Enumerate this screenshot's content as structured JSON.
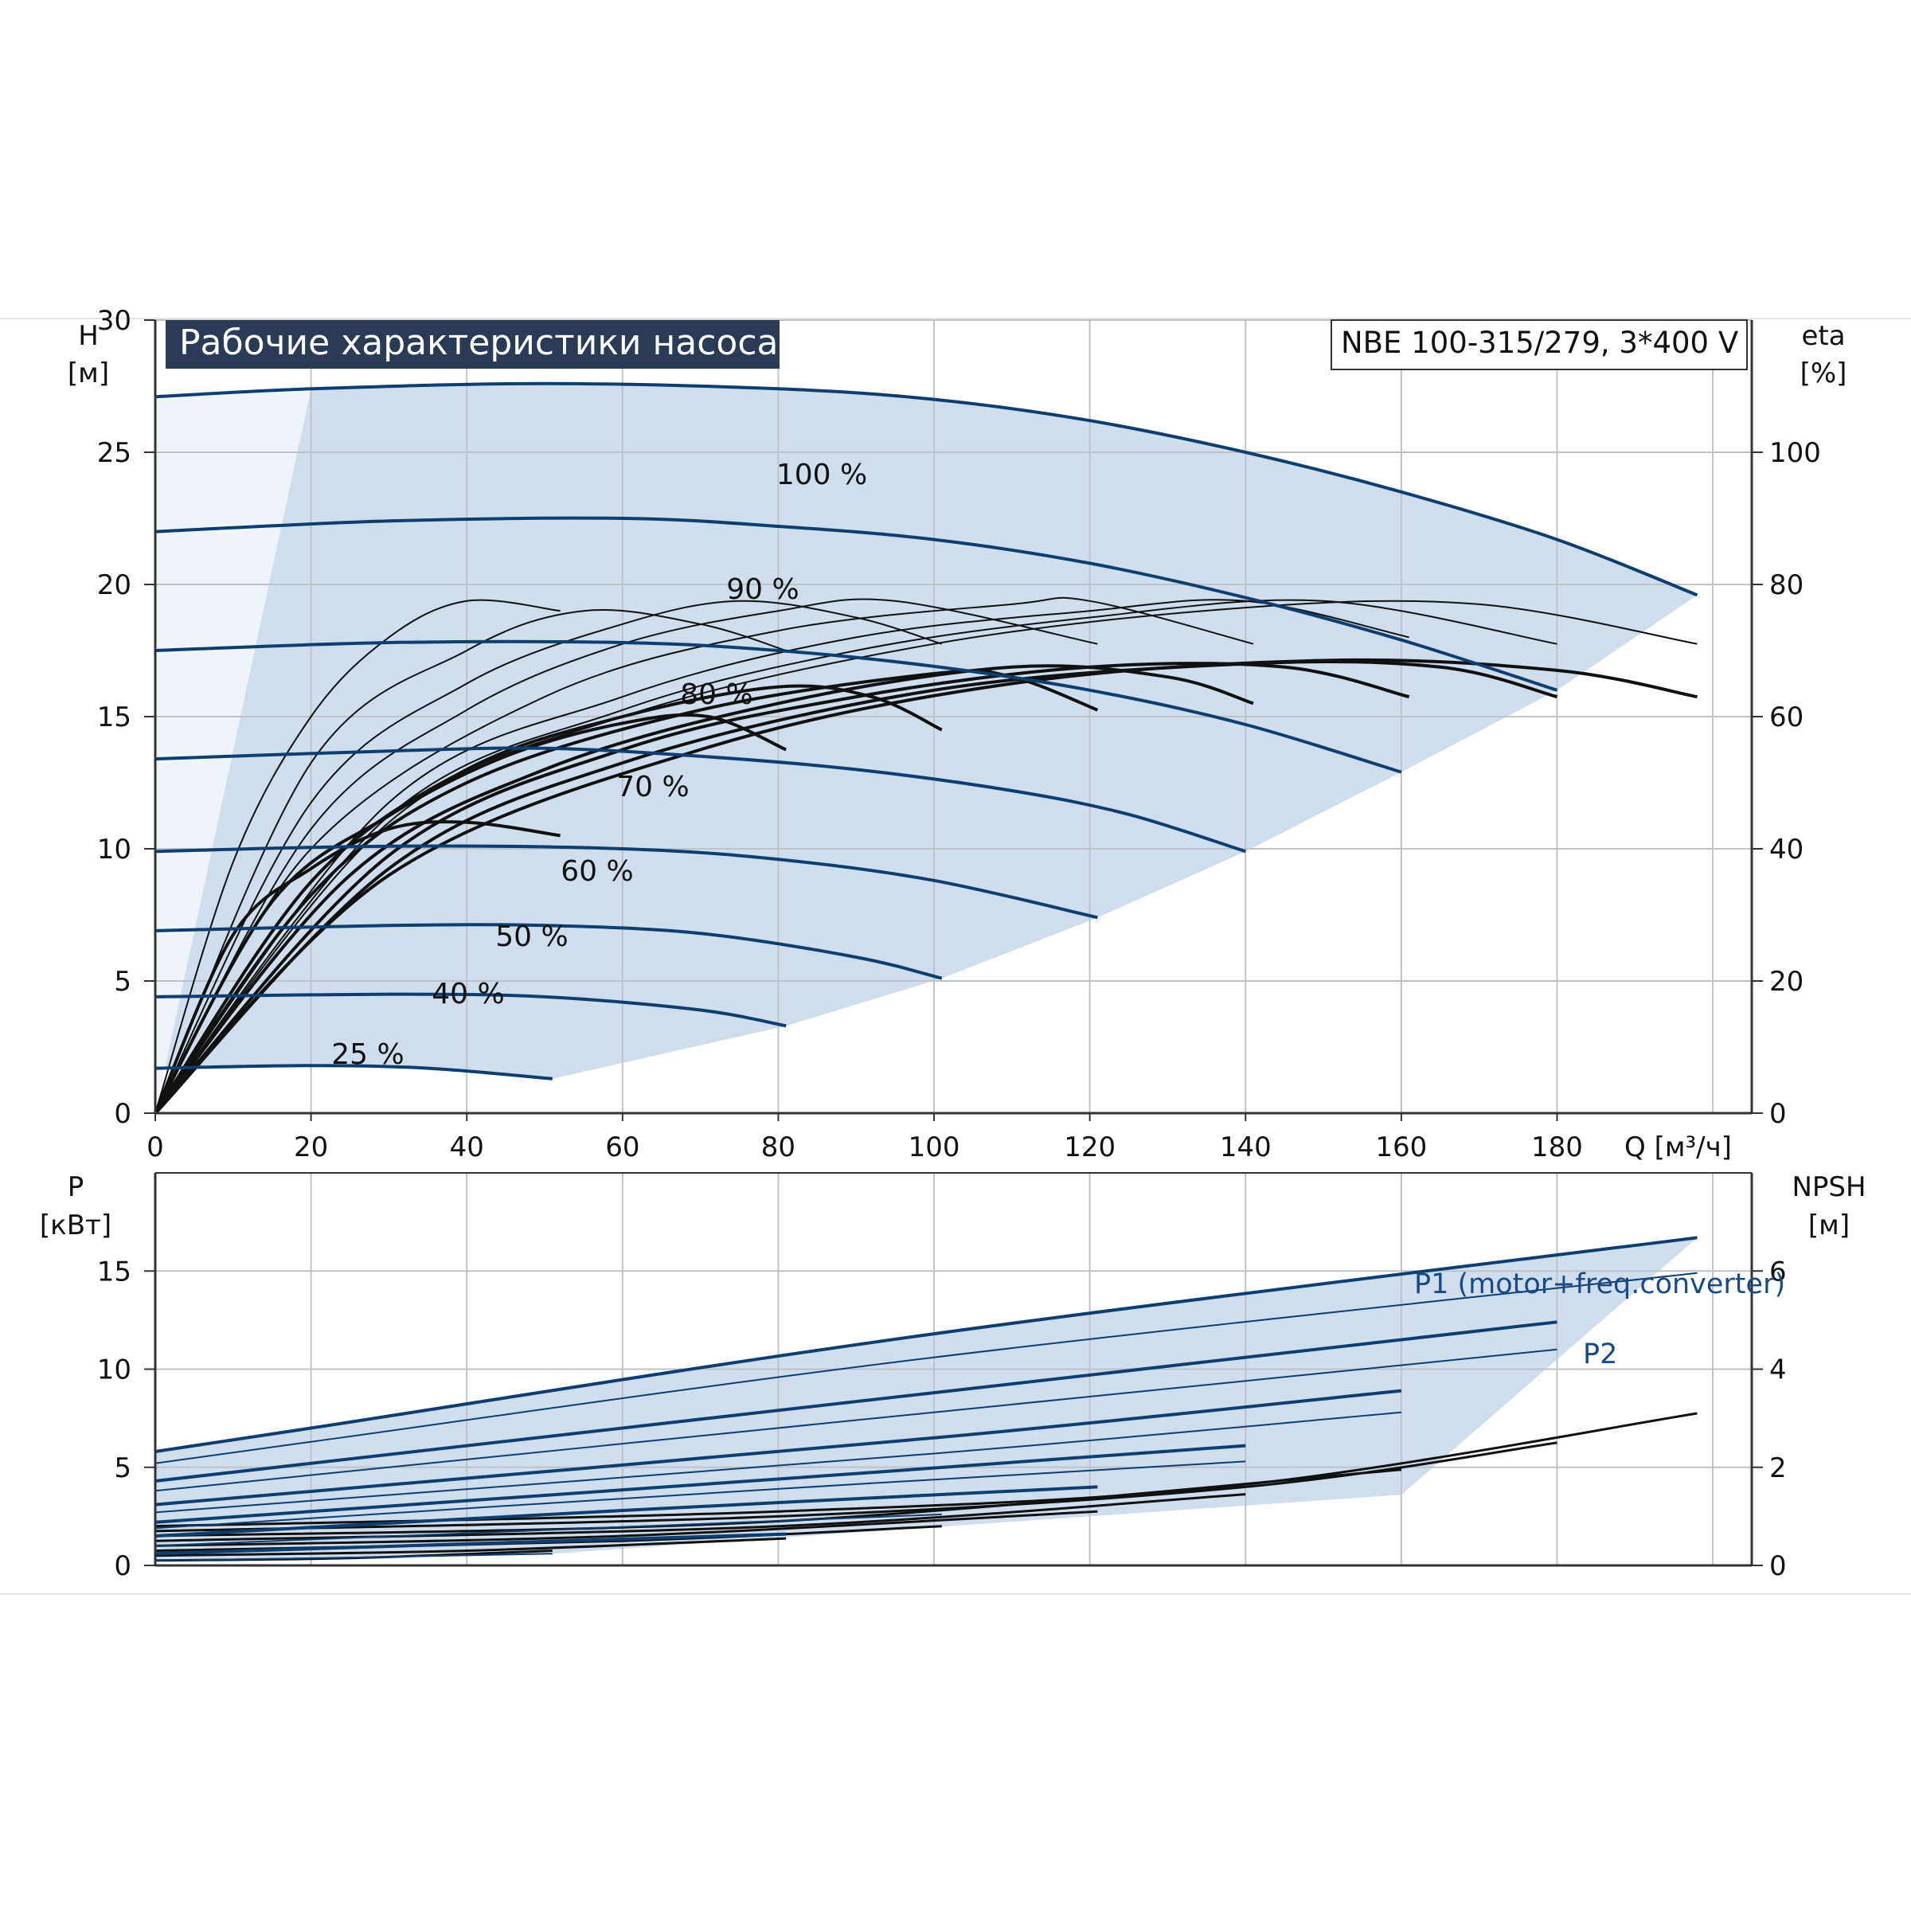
{
  "chart_data": [
    {
      "type": "line",
      "title": "Рабочие характеристики насоса",
      "model": "NBE 100-315/279, 3*400 V",
      "xlabel": "Q [м³/ч]",
      "ylabel": [
        "H",
        "[м]"
      ],
      "y2label": [
        "eta",
        "[%]"
      ],
      "xlim": [
        0,
        205
      ],
      "ylim": [
        0,
        30
      ],
      "y2lim": [
        0,
        120
      ],
      "x_ticks": [
        "0",
        "20",
        "40",
        "60",
        "80",
        "100",
        "120",
        "140",
        "160",
        "180"
      ],
      "y_ticks": [
        "0",
        "5",
        "10",
        "15",
        "20",
        "25",
        "30"
      ],
      "y2_ticks": [
        "0",
        "20",
        "40",
        "60",
        "80",
        "100"
      ],
      "grid": true,
      "colors": {
        "head": "#0f3d6e",
        "eta": "#111111",
        "area": "#cfddec",
        "area_light": "#eef4fa",
        "title_bg": "#2b3a55"
      },
      "head_curves": [
        {
          "name": "100 %",
          "points": [
            [
              0,
              27.1
            ],
            [
              20,
              27.4
            ],
            [
              50,
              27.6
            ],
            [
              80,
              27.4
            ],
            [
              100,
              27.0
            ],
            [
              120,
              26.2
            ],
            [
              140,
              25.0
            ],
            [
              160,
              23.5
            ],
            [
              180,
              21.7
            ],
            [
              198,
              19.6
            ]
          ]
        },
        {
          "name": "90 %",
          "points": [
            [
              0,
              22.0
            ],
            [
              30,
              22.4
            ],
            [
              60,
              22.5
            ],
            [
              80,
              22.2
            ],
            [
              100,
              21.7
            ],
            [
              120,
              20.8
            ],
            [
              140,
              19.5
            ],
            [
              160,
              17.9
            ],
            [
              180,
              16.0
            ]
          ]
        },
        {
          "name": "80 %",
          "points": [
            [
              0,
              17.5
            ],
            [
              30,
              17.8
            ],
            [
              60,
              17.8
            ],
            [
              80,
              17.5
            ],
            [
              100,
              16.9
            ],
            [
              120,
              16.0
            ],
            [
              140,
              14.7
            ],
            [
              160,
              12.9
            ]
          ]
        },
        {
          "name": "70 %",
          "points": [
            [
              0,
              13.4
            ],
            [
              30,
              13.7
            ],
            [
              50,
              13.8
            ],
            [
              70,
              13.5
            ],
            [
              90,
              13.0
            ],
            [
              110,
              12.2
            ],
            [
              125,
              11.3
            ],
            [
              140,
              9.9
            ]
          ]
        },
        {
          "name": "60 %",
          "points": [
            [
              0,
              9.9
            ],
            [
              30,
              10.1
            ],
            [
              60,
              10.0
            ],
            [
              80,
              9.6
            ],
            [
              100,
              8.8
            ],
            [
              121,
              7.4
            ]
          ]
        },
        {
          "name": "50 %",
          "points": [
            [
              0,
              6.9
            ],
            [
              30,
              7.1
            ],
            [
              50,
              7.1
            ],
            [
              70,
              6.8
            ],
            [
              90,
              5.9
            ],
            [
              101,
              5.1
            ]
          ]
        },
        {
          "name": "40 %",
          "points": [
            [
              0,
              4.4
            ],
            [
              30,
              4.5
            ],
            [
              50,
              4.4
            ],
            [
              70,
              3.9
            ],
            [
              81,
              3.3
            ]
          ]
        },
        {
          "name": "25 %",
          "points": [
            [
              0,
              1.7
            ],
            [
              20,
              1.8
            ],
            [
              35,
              1.7
            ],
            [
              51,
              1.3
            ]
          ]
        }
      ],
      "eta_curves": [
        {
          "points": [
            [
              0,
              0
            ],
            [
              10,
              38
            ],
            [
              20,
              60
            ],
            [
              30,
              72
            ],
            [
              40,
              77.5
            ],
            [
              52,
              76
            ]
          ],
          "weight": "thin"
        },
        {
          "points": [
            [
              0,
              0
            ],
            [
              20,
              53
            ],
            [
              40,
              70
            ],
            [
              55,
              76
            ],
            [
              70,
              74
            ],
            [
              81,
              70
            ]
          ],
          "weight": "thin"
        },
        {
          "points": [
            [
              0,
              0
            ],
            [
              20,
              47
            ],
            [
              40,
              65
            ],
            [
              60,
              74
            ],
            [
              75,
              77.5
            ],
            [
              90,
              75
            ],
            [
              101,
              71
            ]
          ],
          "weight": "thin"
        },
        {
          "points": [
            [
              0,
              0
            ],
            [
              20,
              43
            ],
            [
              40,
              61
            ],
            [
              60,
              71
            ],
            [
              80,
              76
            ],
            [
              95,
              77.5
            ],
            [
              121,
              71
            ]
          ],
          "weight": "thin"
        },
        {
          "points": [
            [
              0,
              0
            ],
            [
              20,
              40
            ],
            [
              50,
              63
            ],
            [
              80,
              73
            ],
            [
              110,
              77
            ],
            [
              120,
              77.5
            ],
            [
              141,
              71
            ]
          ],
          "weight": "thin"
        },
        {
          "points": [
            [
              0,
              0
            ],
            [
              30,
              47
            ],
            [
              60,
              63
            ],
            [
              90,
              72
            ],
            [
              120,
              76
            ],
            [
              140,
              77.5
            ],
            [
              161,
              72
            ]
          ],
          "weight": "thin"
        },
        {
          "points": [
            [
              0,
              0
            ],
            [
              30,
              45
            ],
            [
              60,
              61
            ],
            [
              90,
              70
            ],
            [
              120,
              75
            ],
            [
              150,
              77.5
            ],
            [
              180,
              71
            ]
          ],
          "weight": "thin"
        },
        {
          "points": [
            [
              0,
              0
            ],
            [
              30,
              44
            ],
            [
              60,
              60
            ],
            [
              100,
              71
            ],
            [
              140,
              76.5
            ],
            [
              170,
              77
            ],
            [
              198,
              71
            ]
          ],
          "weight": "thin"
        },
        {
          "points": [
            [
              0,
              0
            ],
            [
              10,
              27
            ],
            [
              20,
              37
            ],
            [
              30,
              43
            ],
            [
              40,
              44
            ],
            [
              52,
              42
            ]
          ],
          "weight": "bold"
        },
        {
          "points": [
            [
              0,
              0
            ],
            [
              15,
              32
            ],
            [
              30,
              45
            ],
            [
              45,
              54
            ],
            [
              60,
              59
            ],
            [
              71,
              60
            ],
            [
              81,
              55
            ]
          ],
          "weight": "bold"
        },
        {
          "points": [
            [
              0,
              0
            ],
            [
              20,
              35
            ],
            [
              40,
              52
            ],
            [
              60,
              60
            ],
            [
              80,
              64.5
            ],
            [
              92,
              63
            ],
            [
              101,
              58
            ]
          ],
          "weight": "bold"
        },
        {
          "points": [
            [
              0,
              0
            ],
            [
              20,
              33
            ],
            [
              40,
              50
            ],
            [
              70,
              61
            ],
            [
              100,
              66.5
            ],
            [
              110,
              66
            ],
            [
              121,
              61
            ]
          ],
          "weight": "bold"
        },
        {
          "points": [
            [
              0,
              0
            ],
            [
              25,
              36
            ],
            [
              50,
              52
            ],
            [
              80,
              62
            ],
            [
              110,
              67.5
            ],
            [
              130,
              66
            ],
            [
              141,
              62
            ]
          ],
          "weight": "bold"
        },
        {
          "points": [
            [
              0,
              0
            ],
            [
              30,
              39
            ],
            [
              60,
              55
            ],
            [
              90,
              63
            ],
            [
              120,
              67.5
            ],
            [
              145,
              67.5
            ],
            [
              161,
              63
            ]
          ],
          "weight": "bold"
        },
        {
          "points": [
            [
              0,
              0
            ],
            [
              30,
              37
            ],
            [
              60,
              53
            ],
            [
              100,
              64
            ],
            [
              140,
              68
            ],
            [
              165,
              67.5
            ],
            [
              180,
              63
            ]
          ],
          "weight": "bold"
        },
        {
          "points": [
            [
              0,
              0
            ],
            [
              30,
              36
            ],
            [
              70,
              55
            ],
            [
              110,
              65
            ],
            [
              150,
              68.5
            ],
            [
              180,
              67
            ],
            [
              198,
              63
            ]
          ],
          "weight": "bold"
        }
      ]
    },
    {
      "type": "line",
      "ylabel": [
        "P",
        "[кВт]"
      ],
      "y2label": [
        "NPSH",
        "[м]"
      ],
      "xlim": [
        0,
        205
      ],
      "ylim": [
        0,
        20
      ],
      "y2lim": [
        0,
        8
      ],
      "y_ticks": [
        "0",
        "5",
        "10",
        "15"
      ],
      "y2_ticks": [
        "0",
        "2",
        "4",
        "6"
      ],
      "grid": true,
      "annotations": [
        "P1 (motor+freq.converter)",
        "P2"
      ],
      "power_curves": [
        {
          "name": "P1 100 %",
          "points": [
            [
              0,
              5.8
            ],
            [
              20,
              7.0
            ],
            [
              100,
              11.8
            ],
            [
              198,
              16.7
            ]
          ]
        },
        {
          "name": "P2 100 %",
          "points": [
            [
              0,
              5.2
            ],
            [
              20,
              6.3
            ],
            [
              100,
              10.6
            ],
            [
              198,
              14.9
            ]
          ]
        },
        {
          "name": "P1 90 %",
          "points": [
            [
              0,
              4.3
            ],
            [
              100,
              8.8
            ],
            [
              180,
              12.4
            ]
          ]
        },
        {
          "name": "P2 90 %",
          "points": [
            [
              0,
              3.8
            ],
            [
              100,
              7.8
            ],
            [
              180,
              11.0
            ]
          ]
        },
        {
          "name": "P1 80 %",
          "points": [
            [
              0,
              3.1
            ],
            [
              100,
              6.5
            ],
            [
              160,
              8.9
            ]
          ]
        },
        {
          "name": "P2 80 %",
          "points": [
            [
              0,
              2.7
            ],
            [
              100,
              5.7
            ],
            [
              160,
              7.8
            ]
          ]
        },
        {
          "name": "P1 70 %",
          "points": [
            [
              0,
              2.2
            ],
            [
              80,
              4.4
            ],
            [
              140,
              6.1
            ]
          ]
        },
        {
          "name": "P2 70 %",
          "points": [
            [
              0,
              1.9
            ],
            [
              80,
              3.9
            ],
            [
              140,
              5.3
            ]
          ]
        },
        {
          "name": "P1 60 %",
          "points": [
            [
              0,
              1.5
            ],
            [
              60,
              2.8
            ],
            [
              121,
              4.0
            ]
          ]
        },
        {
          "name": "P1 50 %",
          "points": [
            [
              0,
              1.0
            ],
            [
              50,
              1.8
            ],
            [
              101,
              2.6
            ]
          ]
        },
        {
          "name": "P1 40 %",
          "points": [
            [
              0,
              0.6
            ],
            [
              40,
              1.1
            ],
            [
              81,
              1.6
            ]
          ]
        },
        {
          "name": "P1 25 %",
          "points": [
            [
              0,
              0.25
            ],
            [
              25,
              0.4
            ],
            [
              51,
              0.6
            ]
          ]
        }
      ],
      "npsh_curves": [
        {
          "points": [
            [
              0,
              0.8
            ],
            [
              80,
              1.1
            ],
            [
              140,
              1.65
            ],
            [
              198,
              3.1
            ]
          ]
        },
        {
          "points": [
            [
              0,
              0.7
            ],
            [
              80,
              1.0
            ],
            [
              140,
              1.6
            ],
            [
              180,
              2.5
            ]
          ]
        },
        {
          "points": [
            [
              0,
              0.6
            ],
            [
              80,
              0.9
            ],
            [
              160,
              1.95
            ]
          ]
        },
        {
          "points": [
            [
              0,
              0.5
            ],
            [
              80,
              0.8
            ],
            [
              140,
              1.45
            ]
          ]
        },
        {
          "points": [
            [
              0,
              0.4
            ],
            [
              60,
              0.6
            ],
            [
              121,
              1.1
            ]
          ]
        },
        {
          "points": [
            [
              0,
              0.3
            ],
            [
              60,
              0.5
            ],
            [
              101,
              0.8
            ]
          ]
        },
        {
          "points": [
            [
              0,
              0.2
            ],
            [
              40,
              0.3
            ],
            [
              81,
              0.55
            ]
          ]
        },
        {
          "points": [
            [
              0,
              0.1
            ],
            [
              25,
              0.15
            ],
            [
              51,
              0.3
            ]
          ]
        }
      ]
    }
  ]
}
